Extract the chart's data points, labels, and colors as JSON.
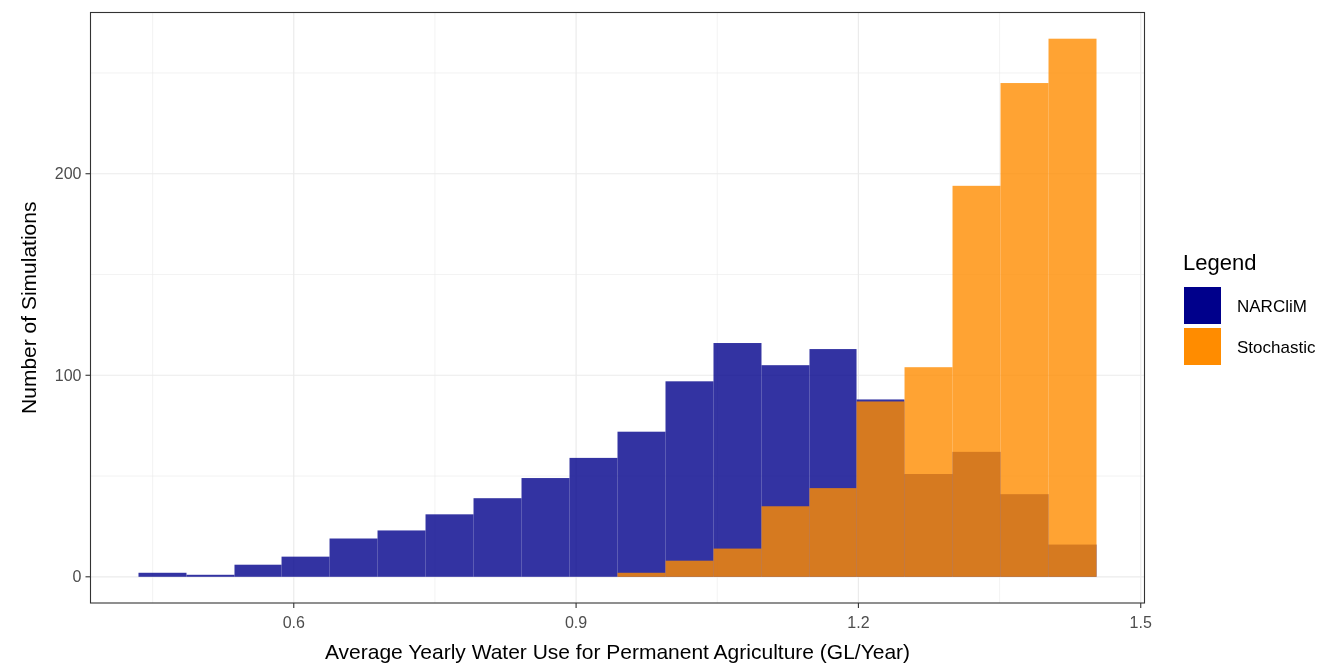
{
  "chart_data": {
    "type": "histogram",
    "xlabel": "Average Yearly Water Use for Permanent Agriculture (GL/Year)",
    "ylabel": "Number of Simulations",
    "legend_title": "Legend",
    "bins": [
      0.435,
      0.486,
      0.537,
      0.587,
      0.638,
      0.689,
      0.74,
      0.791,
      0.842,
      0.893,
      0.944,
      0.995,
      1.046,
      1.097,
      1.148,
      1.198,
      1.249,
      1.3,
      1.351,
      1.402,
      1.453
    ],
    "series": [
      {
        "name": "NARCliM",
        "color": "#00008b",
        "values": [
          2,
          1,
          6,
          10,
          19,
          23,
          31,
          39,
          49,
          59,
          72,
          97,
          116,
          105,
          113,
          88,
          51,
          62,
          41,
          16
        ]
      },
      {
        "name": "Stochastic",
        "color": "#ff8c00",
        "values": [
          0,
          0,
          0,
          0,
          0,
          0,
          0,
          0,
          0,
          0,
          2,
          8,
          14,
          35,
          44,
          87,
          104,
          194,
          245,
          267
        ]
      }
    ],
    "xlim": [
      0.384,
      1.504
    ],
    "ylim": [
      -13,
      280
    ],
    "xticks": [
      0.6,
      0.9,
      1.2,
      1.5
    ],
    "yticks": [
      0,
      100,
      200
    ],
    "grid": true,
    "legend": "right"
  }
}
